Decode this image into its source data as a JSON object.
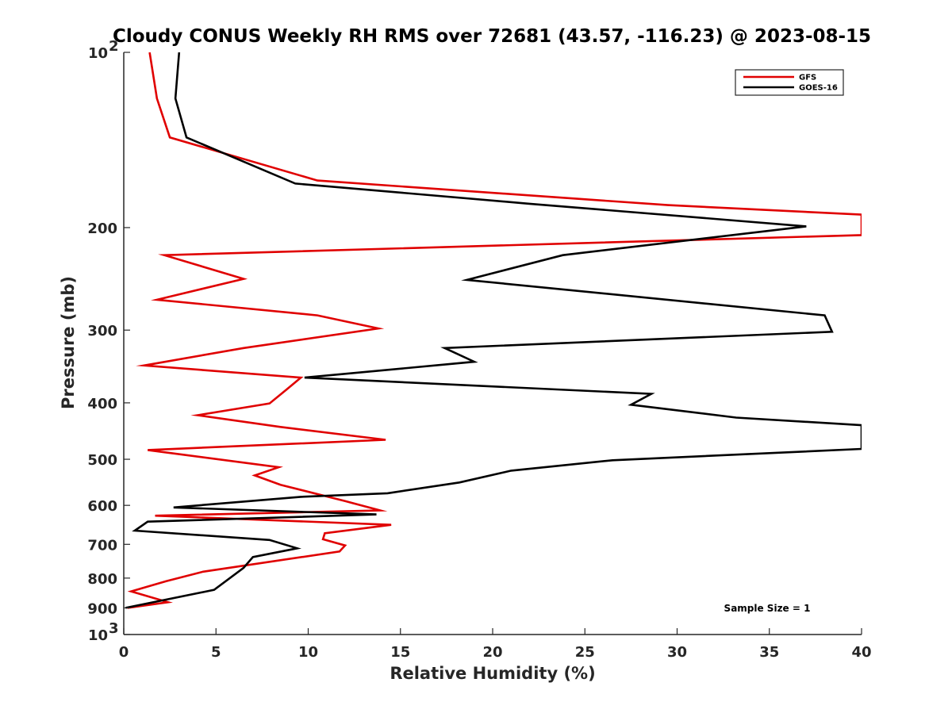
{
  "chart_data": {
    "type": "line",
    "title": "Cloudy CONUS Weekly RH RMS over 72681 (43.57, -116.23) @ 2023-08-15",
    "xlabel": "Relative Humidity (%)",
    "ylabel": "Pressure (mb)",
    "xlim": [
      0,
      40
    ],
    "ylim": [
      100,
      1000
    ],
    "y_scale": "log",
    "y_reversed": true,
    "x_ticks": [
      "0",
      "5",
      "10",
      "15",
      "20",
      "25",
      "30",
      "35",
      "40"
    ],
    "y_ticks": [
      {
        "value": 100,
        "base": "10",
        "exp": "2"
      },
      {
        "value": 200,
        "label": "200"
      },
      {
        "value": 300,
        "label": "300"
      },
      {
        "value": 400,
        "label": "400"
      },
      {
        "value": 500,
        "label": "500"
      },
      {
        "value": 600,
        "label": "600"
      },
      {
        "value": 700,
        "label": "700"
      },
      {
        "value": 800,
        "label": "800"
      },
      {
        "value": 900,
        "label": "900"
      },
      {
        "value": 1000,
        "base": "10",
        "exp": "3"
      }
    ],
    "grid": false,
    "legend_position": "top-right",
    "annotation": "Sample Size = 1",
    "series": [
      {
        "name": "GFS",
        "color": "#e00000",
        "points": [
          [
            1.4,
            100
          ],
          [
            1.8,
            120
          ],
          [
            2.5,
            140
          ],
          [
            10.5,
            166
          ],
          [
            29.5,
            183
          ],
          [
            40,
            190
          ],
          [
            40,
            206
          ],
          [
            2.2,
            223
          ],
          [
            6.5,
            245
          ],
          [
            1.8,
            266
          ],
          [
            10.5,
            283
          ],
          [
            13.8,
            298
          ],
          [
            6.5,
            322
          ],
          [
            1.1,
            345
          ],
          [
            9.6,
            362
          ],
          [
            8.8,
            380
          ],
          [
            7.9,
            401
          ],
          [
            4.0,
            420
          ],
          [
            8.5,
            440
          ],
          [
            14.2,
            463
          ],
          [
            1.3,
            482
          ],
          [
            8.4,
            516
          ],
          [
            7.1,
            533
          ],
          [
            8.5,
            553
          ],
          [
            12.0,
            590
          ],
          [
            13.9,
            612
          ],
          [
            1.7,
            625
          ],
          [
            14.5,
            648
          ],
          [
            10.9,
            670
          ],
          [
            10.8,
            686
          ],
          [
            12.0,
            703
          ],
          [
            11.7,
            720
          ],
          [
            4.3,
            780
          ],
          [
            2.3,
            810
          ],
          [
            0.4,
            843
          ],
          [
            2.4,
            880
          ],
          [
            0.2,
            900
          ]
        ]
      },
      {
        "name": "GOES-16",
        "color": "#000000",
        "points": [
          [
            3.0,
            100
          ],
          [
            2.8,
            120
          ],
          [
            3.4,
            140
          ],
          [
            9.3,
            168
          ],
          [
            22.0,
            182
          ],
          [
            37.0,
            199
          ],
          [
            23.8,
            223
          ],
          [
            18.6,
            246
          ],
          [
            38.0,
            283
          ],
          [
            38.4,
            302
          ],
          [
            17.4,
            322
          ],
          [
            19.0,
            340
          ],
          [
            9.8,
            362
          ],
          [
            28.6,
            386
          ],
          [
            27.5,
            403
          ],
          [
            33.2,
            424
          ],
          [
            40,
            437
          ],
          [
            40,
            480
          ],
          [
            26.5,
            502
          ],
          [
            21.0,
            523
          ],
          [
            18.2,
            548
          ],
          [
            14.3,
            572
          ],
          [
            9.6,
            580
          ],
          [
            2.7,
            605
          ],
          [
            13.7,
            622
          ],
          [
            1.3,
            640
          ],
          [
            0.6,
            663
          ],
          [
            7.9,
            688
          ],
          [
            9.4,
            711
          ],
          [
            7.0,
            736
          ],
          [
            6.5,
            768
          ],
          [
            4.9,
            838
          ],
          [
            0.1,
            900
          ]
        ]
      }
    ]
  }
}
